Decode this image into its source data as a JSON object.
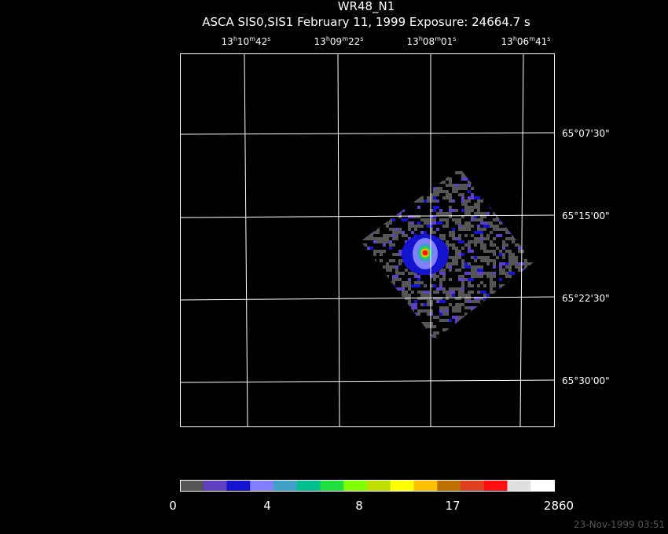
{
  "header": {
    "title": "WR48_N1",
    "subtitle": "ASCA SIS0,SIS1 February 11, 1999 Exposure: 24664.7 s"
  },
  "ra_labels": [
    [
      "13",
      "h",
      "10",
      "m",
      "42",
      "s"
    ],
    [
      "13",
      "h",
      "09",
      "m",
      "22",
      "s"
    ],
    [
      "13",
      "h",
      "08",
      "m",
      "01",
      "s"
    ],
    [
      "13",
      "h",
      "06",
      "m",
      "41",
      "s"
    ]
  ],
  "dec_labels": [
    "65°07'30\"",
    "65°15'00\"",
    "65°22'30\"",
    "65°30'00\""
  ],
  "colorbar": {
    "colors": [
      "#555555",
      "#6040c0",
      "#1414d0",
      "#8080ff",
      "#40a0c8",
      "#00c090",
      "#20e040",
      "#80ff00",
      "#c0e000",
      "#ffff00",
      "#ffc000",
      "#c07000",
      "#e04020",
      "#ff1010",
      "#e0e0e0",
      "#ffffff"
    ],
    "labels": [
      "0",
      "4",
      "8",
      "17",
      "2860"
    ]
  },
  "timestamp": "23-Nov-1999 03:51"
}
